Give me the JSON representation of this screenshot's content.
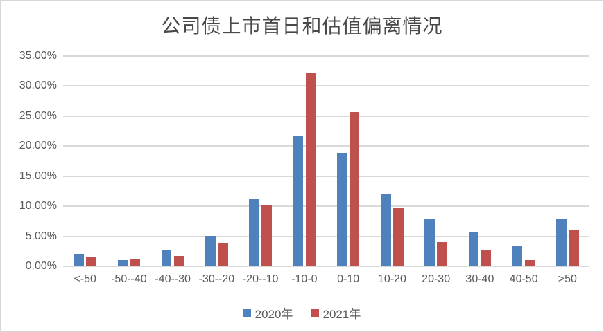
{
  "chart_data": {
    "type": "bar",
    "title": "公司债上市首日和估值偏离情况",
    "categories": [
      "<-50",
      "-50--40",
      "-40--30",
      "-30--20",
      "-20--10",
      "-10-0",
      "0-10",
      "10-20",
      "20-30",
      "30-40",
      "40-50",
      ">50"
    ],
    "series": [
      {
        "name": "2020年",
        "color": "#4F81BD",
        "values": [
          2.1,
          1.0,
          2.6,
          5.1,
          11.2,
          21.7,
          18.9,
          12.0,
          8.0,
          5.8,
          3.4,
          8.0
        ]
      },
      {
        "name": "2021年",
        "color": "#C0504D",
        "values": [
          1.6,
          1.3,
          1.7,
          3.9,
          10.3,
          32.2,
          25.7,
          9.7,
          4.0,
          2.6,
          1.0,
          6.0
        ]
      }
    ],
    "xlabel": "",
    "ylabel": "",
    "ylim": [
      0,
      35
    ],
    "ytick_step": 5,
    "ytick_labels_top_to_bottom": [
      "35.00%",
      "30.00%",
      "25.00%",
      "20.00%",
      "15.00%",
      "10.00%",
      "5.00%",
      "0.00%"
    ],
    "grid": true,
    "legend_position": "bottom",
    "colors": {
      "gridline": "#d9d9d9",
      "axis_text": "#595959",
      "title_text": "#484848",
      "frame_border": "#d6d6d6",
      "background": "#ffffff"
    }
  }
}
